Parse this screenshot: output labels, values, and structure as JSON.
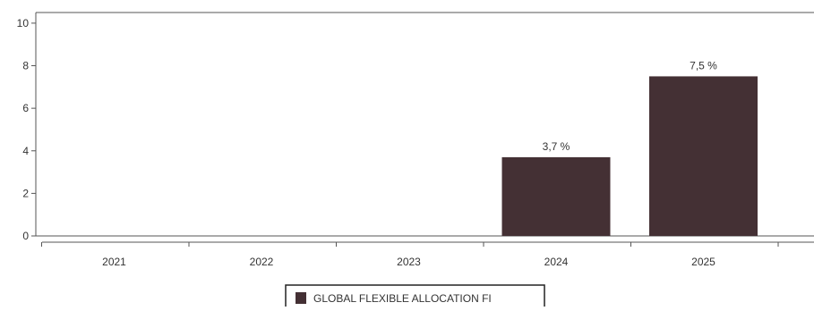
{
  "chart_data": {
    "type": "bar",
    "categories": [
      "2021",
      "2022",
      "2023",
      "2024",
      "2025"
    ],
    "series": [
      {
        "name": "GLOBAL FLEXIBLE ALLOCATION FI",
        "values": [
          null,
          null,
          null,
          3.7,
          7.5
        ],
        "color": "#443034"
      }
    ],
    "data_labels": [
      "",
      "",
      "",
      "3,7 %",
      "7,5 %"
    ],
    "y_ticks": [
      "0",
      "2",
      "4",
      "6",
      "8",
      "10"
    ],
    "ylim": [
      0,
      10.5
    ],
    "grid": false,
    "legend_position": "bottom-center"
  }
}
